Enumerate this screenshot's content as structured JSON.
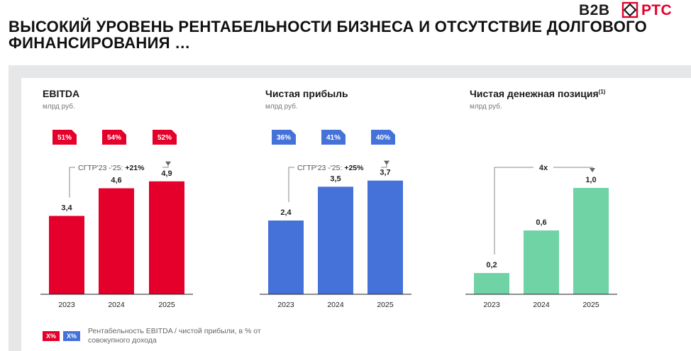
{
  "header": {
    "title": "ВЫСОКИЙ УРОВЕНЬ РЕНТАБЕЛЬНОСТИ БИЗНЕСА И ОТСУТСТВИЕ ДОЛГОВОГО ФИНАНСИРОВАНИЯ …",
    "logo_left": "B2B",
    "logo_right": "РТС",
    "brand_color": "#e4002b"
  },
  "chart_data": [
    {
      "type": "bar",
      "title": "EBITDA",
      "unit": "млрд руб.",
      "categories": [
        "2023",
        "2024",
        "2025"
      ],
      "values": [
        3.4,
        4.6,
        4.9
      ],
      "value_labels": [
        "3,4",
        "4,6",
        "4,9"
      ],
      "badges": [
        "51%",
        "54%",
        "52%"
      ],
      "annotation_label": "CГТР'23 -'25:",
      "annotation_value": "+21%",
      "color": "#e4002b",
      "ylim": [
        0,
        6
      ]
    },
    {
      "type": "bar",
      "title": "Чистая прибыль",
      "unit": "млрд руб.",
      "categories": [
        "2023",
        "2024",
        "2025"
      ],
      "values": [
        2.4,
        3.5,
        3.7
      ],
      "value_labels": [
        "2,4",
        "3,5",
        "3,7"
      ],
      "badges": [
        "36%",
        "41%",
        "40%"
      ],
      "annotation_label": "CГТР'23 -'25:",
      "annotation_value": "+25%",
      "color": "#4472d8",
      "ylim": [
        0,
        4.5
      ]
    },
    {
      "type": "bar",
      "title": "Чистая денежная позиция",
      "title_sup": "(1)",
      "unit": "млрд руб.",
      "categories": [
        "2023",
        "2024",
        "2025"
      ],
      "values": [
        0.2,
        0.6,
        1.0
      ],
      "value_labels": [
        "0,2",
        "0,6",
        "1,0"
      ],
      "annotation_label": "",
      "annotation_value": "4x",
      "color": "#6fd3a5",
      "ylim": [
        0,
        1.3
      ]
    }
  ],
  "legend": {
    "badge_red": "X%",
    "badge_blue": "X%",
    "text": "Рентабельность EBITDA / чистой прибыли, в % от совокупного дохода"
  }
}
